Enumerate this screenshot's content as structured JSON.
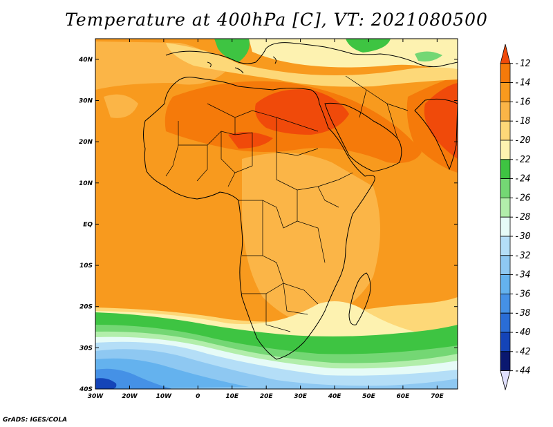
{
  "title": "Temperature at 400hPa [C], VT: 2021080500",
  "footer": "GrADS: IGES/COLA",
  "map": {
    "lon_range": [
      -30,
      76
    ],
    "lat_range": [
      -40,
      45
    ],
    "x_ticks": [
      {
        "lon": -30,
        "label": "30W"
      },
      {
        "lon": -20,
        "label": "20W"
      },
      {
        "lon": -10,
        "label": "10W"
      },
      {
        "lon": 0,
        "label": "0"
      },
      {
        "lon": 10,
        "label": "10E"
      },
      {
        "lon": 20,
        "label": "20E"
      },
      {
        "lon": 30,
        "label": "30E"
      },
      {
        "lon": 40,
        "label": "40E"
      },
      {
        "lon": 50,
        "label": "50E"
      },
      {
        "lon": 60,
        "label": "60E"
      },
      {
        "lon": 70,
        "label": "70E"
      }
    ],
    "y_ticks": [
      {
        "lat": 40,
        "label": "40N"
      },
      {
        "lat": 30,
        "label": "30N"
      },
      {
        "lat": 20,
        "label": "20N"
      },
      {
        "lat": 10,
        "label": "10N"
      },
      {
        "lat": 0,
        "label": "EQ"
      },
      {
        "lat": -10,
        "label": "10S"
      },
      {
        "lat": -20,
        "label": "20S"
      },
      {
        "lat": -30,
        "label": "30S"
      },
      {
        "lat": -40,
        "label": "40S"
      }
    ]
  },
  "colorbar": {
    "labels": [
      "-12",
      "-14",
      "-16",
      "-18",
      "-20",
      "-22",
      "-24",
      "-26",
      "-28",
      "-30",
      "-32",
      "-34",
      "-36",
      "-38",
      "-40",
      "-42",
      "-44"
    ],
    "colors": [
      "#f04a0a",
      "#f57a0a",
      "#f89a1e",
      "#fbb547",
      "#fdd878",
      "#fdf2b0",
      "#3ec442",
      "#74d774",
      "#b2eeab",
      "#e6fbf7",
      "#b4def7",
      "#8ec8f2",
      "#64b2ee",
      "#4591e6",
      "#2a6dd6",
      "#1444b8",
      "#0a1870",
      "#e0e0ff"
    ]
  }
}
